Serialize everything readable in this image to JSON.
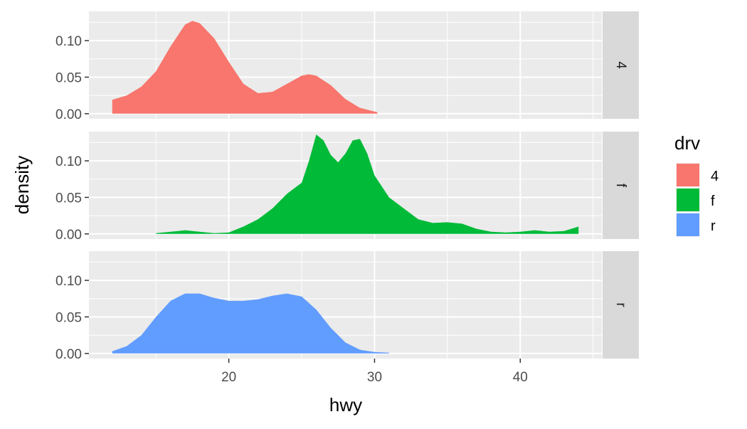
{
  "chart_data": {
    "type": "area",
    "subtype": "density",
    "facet_by": "drv",
    "xlabel": "hwy",
    "ylabel": "density",
    "xlim": [
      10.4,
      45.6
    ],
    "ylim": [
      -0.007,
      0.14
    ],
    "x_ticks": [
      20,
      30,
      40
    ],
    "y_ticks": [
      0.0,
      0.05,
      0.1
    ],
    "y_tick_labels": [
      "0.00",
      "0.05",
      "0.10"
    ],
    "grid": true,
    "legend": {
      "title": "drv",
      "position": "right",
      "entries": [
        {
          "label": "4",
          "color": "#F8766D"
        },
        {
          "label": "f",
          "color": "#00BA38"
        },
        {
          "label": "r",
          "color": "#619CFF"
        }
      ]
    },
    "series": [
      {
        "name": "4",
        "strip_label": "4",
        "color": "#F8766D",
        "x": [
          12,
          13,
          14,
          15,
          16,
          17,
          17.5,
          18,
          19,
          20,
          21,
          22,
          23,
          24,
          25,
          25.5,
          26,
          27,
          28,
          29,
          30,
          30.2
        ],
        "y": [
          0.019,
          0.025,
          0.037,
          0.058,
          0.092,
          0.122,
          0.127,
          0.124,
          0.103,
          0.071,
          0.041,
          0.028,
          0.03,
          0.041,
          0.052,
          0.054,
          0.052,
          0.039,
          0.02,
          0.008,
          0.003,
          0.002
        ]
      },
      {
        "name": "f",
        "strip_label": "f",
        "color": "#00BA38",
        "x": [
          15,
          16,
          17,
          18,
          19,
          20,
          21,
          22,
          23,
          24,
          25,
          25.5,
          26,
          26.5,
          27,
          27.5,
          28,
          28.5,
          29,
          29.5,
          30,
          31,
          32,
          33,
          34,
          35,
          36,
          37,
          38,
          39,
          40,
          41,
          42,
          43,
          44
        ],
        "y": [
          0.001,
          0.003,
          0.005,
          0.003,
          0.001,
          0.002,
          0.01,
          0.02,
          0.035,
          0.055,
          0.07,
          0.1,
          0.136,
          0.128,
          0.108,
          0.098,
          0.11,
          0.128,
          0.13,
          0.11,
          0.08,
          0.05,
          0.035,
          0.02,
          0.015,
          0.016,
          0.014,
          0.007,
          0.003,
          0.002,
          0.003,
          0.005,
          0.003,
          0.004,
          0.01
        ]
      },
      {
        "name": "r",
        "strip_label": "r",
        "color": "#619CFF",
        "x": [
          12,
          13,
          14,
          15,
          16,
          17,
          18,
          19,
          20,
          21,
          22,
          23,
          24,
          25,
          26,
          27,
          28,
          29,
          30,
          31
        ],
        "y": [
          0.003,
          0.01,
          0.025,
          0.05,
          0.072,
          0.082,
          0.082,
          0.076,
          0.072,
          0.072,
          0.074,
          0.079,
          0.082,
          0.078,
          0.06,
          0.035,
          0.015,
          0.005,
          0.002,
          0.001
        ]
      }
    ]
  }
}
